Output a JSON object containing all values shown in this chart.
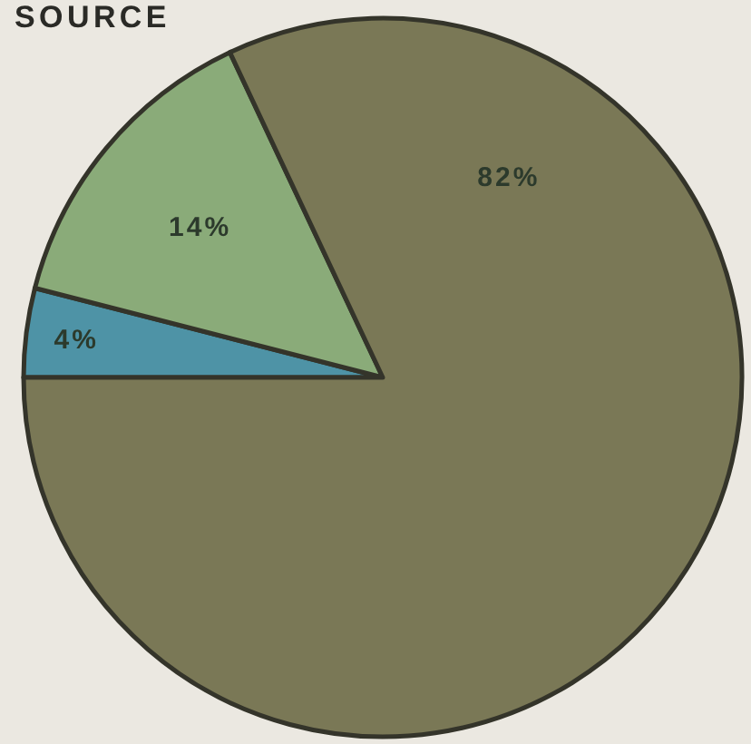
{
  "chart_data": {
    "type": "pie",
    "title": "SOURCE",
    "categories": [
      null,
      null,
      null
    ],
    "values": [
      4,
      14,
      82
    ],
    "colors": [
      "#4e93a6",
      "#8aab79",
      "#7a7856"
    ],
    "value_labels": [
      "4%",
      "14%",
      "82%"
    ]
  }
}
